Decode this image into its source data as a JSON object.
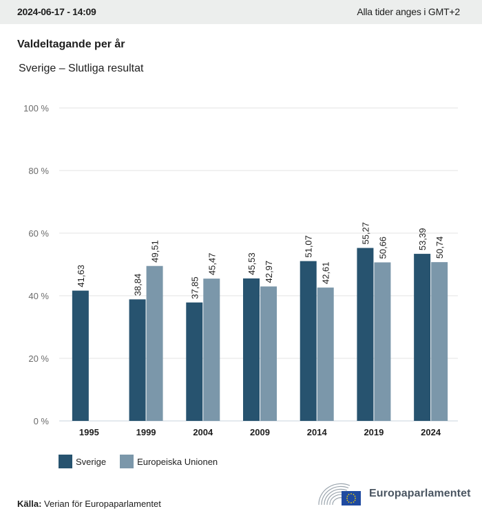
{
  "header": {
    "timestamp": "2024-06-17 - 14:09",
    "timezone_note": "Alla tider anges i GMT+2"
  },
  "title": "Valdeltagande per år",
  "subtitle": "Sverige – Slutliga resultat",
  "colors": {
    "sverige": "#27536f",
    "eu": "#7b97aa",
    "grid": "#e3e3e3",
    "axis": "#c8d3de",
    "topbar": "#eceeed"
  },
  "chart_data": {
    "type": "bar",
    "title": "Valdeltagande per år",
    "subtitle": "Sverige – Slutliga resultat",
    "xlabel": "",
    "ylabel": "",
    "ylim": [
      0,
      100
    ],
    "yticks": [
      0,
      20,
      40,
      60,
      80,
      100
    ],
    "ytick_labels": [
      "0 %",
      "20 %",
      "40 %",
      "60 %",
      "80 %",
      "100 %"
    ],
    "grid": true,
    "categories": [
      "1995",
      "1999",
      "2004",
      "2009",
      "2014",
      "2019",
      "2024"
    ],
    "series": [
      {
        "name": "Sverige",
        "values": [
          41.63,
          38.84,
          37.85,
          45.53,
          51.07,
          55.27,
          53.39
        ],
        "labels": [
          "41,63",
          "38,84",
          "37,85",
          "45,53",
          "51,07",
          "55,27",
          "53,39"
        ]
      },
      {
        "name": "Europeiska Unionen",
        "values": [
          null,
          49.51,
          45.47,
          42.97,
          42.61,
          50.66,
          50.74
        ],
        "labels": [
          null,
          "49,51",
          "45,47",
          "42,97",
          "42,61",
          "50,66",
          "50,74"
        ]
      }
    ],
    "legend_position": "bottom-left"
  },
  "legend": {
    "items": [
      {
        "label": "Sverige"
      },
      {
        "label": "Europeiska Unionen"
      }
    ]
  },
  "source": {
    "label": "Källa:",
    "text": "Verian för Europaparlamentet"
  },
  "logo": {
    "name": "Europaparlamentet",
    "icon": "european-parliament-hemicycle-eu-flag-icon"
  }
}
